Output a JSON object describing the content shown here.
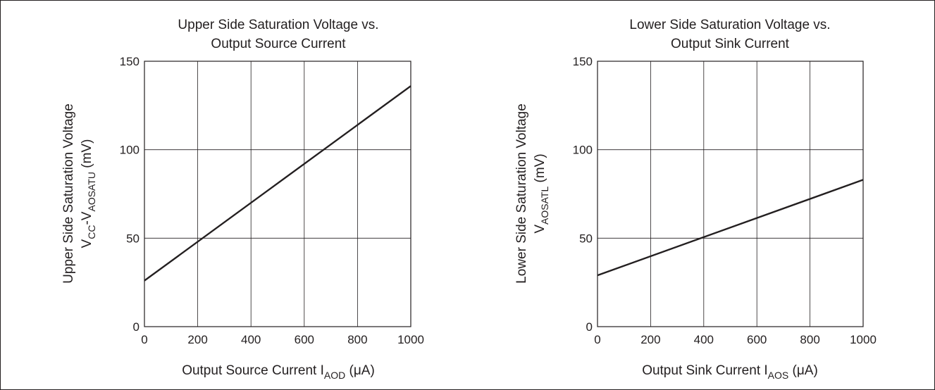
{
  "chart_data": [
    {
      "type": "line",
      "title_lines": [
        "Upper Side Saturation Voltage vs.",
        "Output Source Current"
      ],
      "xlabel": {
        "main": "Output Source Current   I",
        "sub": "AOD",
        "unit": " (μA)"
      },
      "ylabel": {
        "line1": "Upper Side Saturation Voltage",
        "line2_parts": [
          {
            "t": "V",
            "sub": false
          },
          {
            "t": "CC",
            "sub": true
          },
          {
            "t": "-V",
            "sub": false
          },
          {
            "t": "AOSATU",
            "sub": true
          },
          {
            "t": "  (mV)",
            "sub": false
          }
        ]
      },
      "xlim": [
        0,
        1000
      ],
      "ylim": [
        0,
        150
      ],
      "xticks": [
        0,
        200,
        400,
        600,
        800,
        1000
      ],
      "yticks": [
        0,
        50,
        100,
        150
      ],
      "grid": true,
      "series": [
        {
          "x": [
            0,
            1000
          ],
          "y": [
            26,
            136
          ]
        }
      ]
    },
    {
      "type": "line",
      "title_lines": [
        "Lower Side Saturation Voltage vs.",
        "Output Sink Current"
      ],
      "xlabel": {
        "main": "Output Sink Current   I",
        "sub": "AOS",
        "unit": " (μA)"
      },
      "ylabel": {
        "line1": "Lower Side Saturation Voltage",
        "line2_parts": [
          {
            "t": "V",
            "sub": false
          },
          {
            "t": "AOSATL",
            "sub": true
          },
          {
            "t": "  (mV)",
            "sub": false
          }
        ]
      },
      "xlim": [
        0,
        1000
      ],
      "ylim": [
        0,
        150
      ],
      "xticks": [
        0,
        200,
        400,
        600,
        800,
        1000
      ],
      "yticks": [
        0,
        50,
        100,
        150
      ],
      "grid": true,
      "series": [
        {
          "x": [
            0,
            1000
          ],
          "y": [
            29,
            83
          ]
        }
      ]
    }
  ]
}
